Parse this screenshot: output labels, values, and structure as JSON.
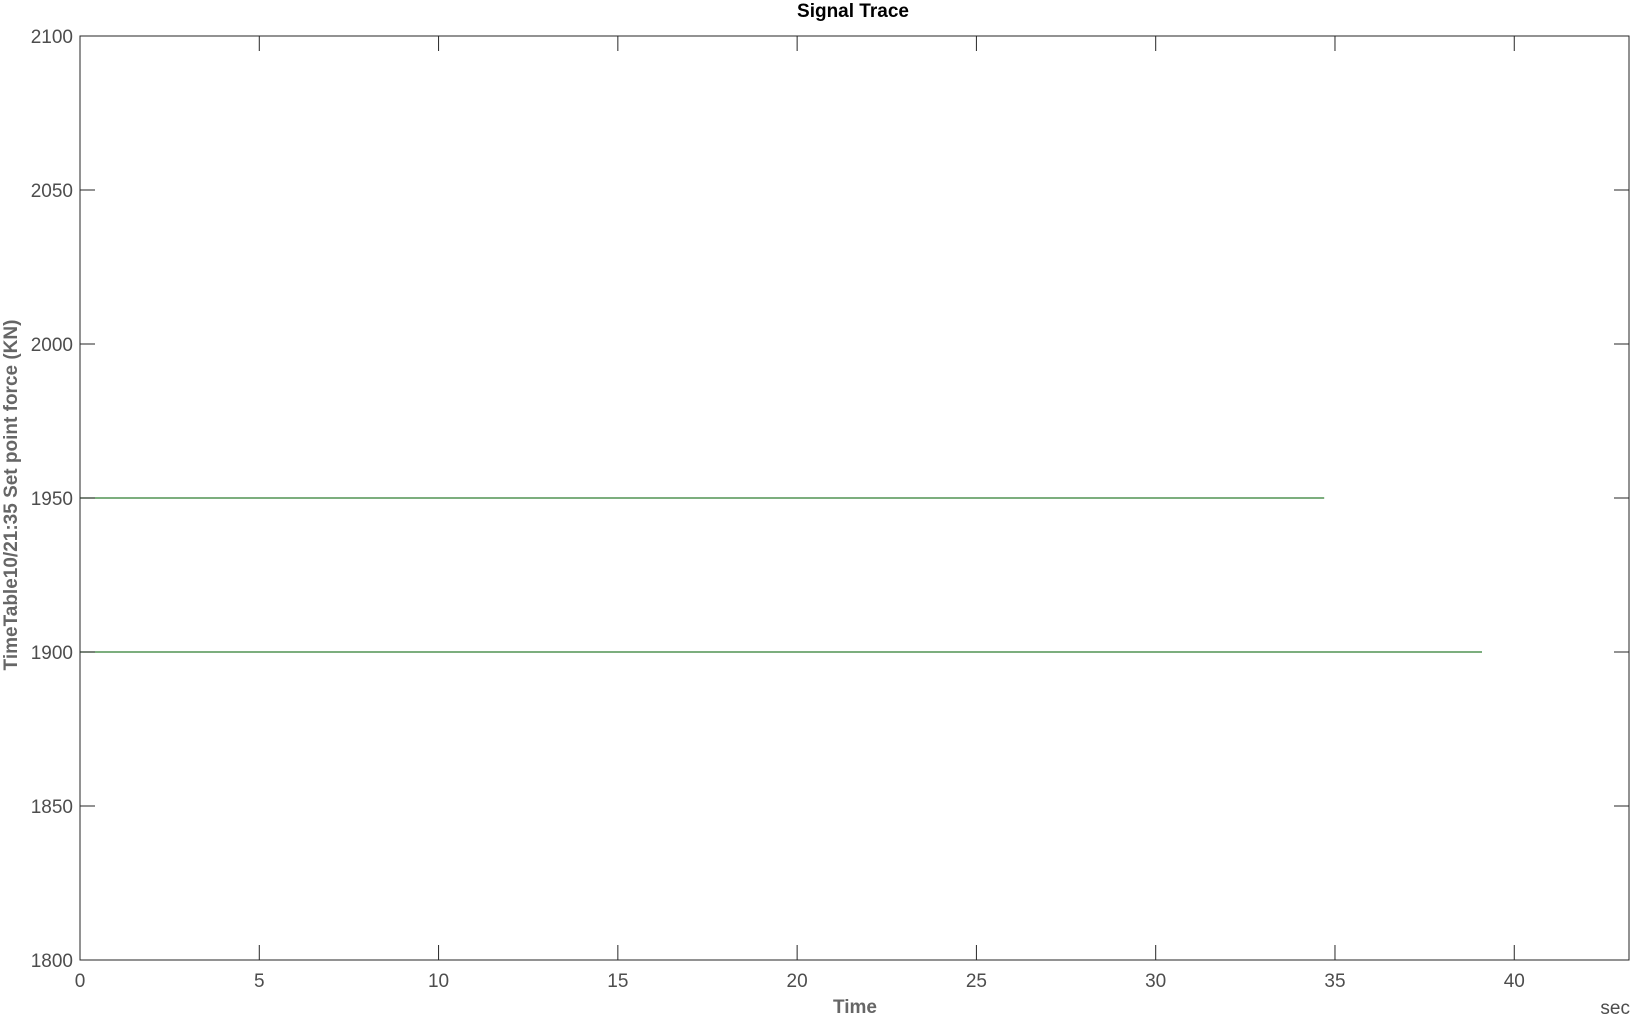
{
  "chart_data": {
    "type": "line",
    "title": "Signal Trace",
    "xlabel": "Time",
    "ylabel": "TimeTable10/21:35 Set point force (KN)",
    "x_unit": "sec",
    "xlim": [
      0,
      43.2
    ],
    "ylim": [
      1800,
      2100
    ],
    "xticks": [
      0,
      5,
      10,
      15,
      20,
      25,
      30,
      35,
      40
    ],
    "yticks": [
      1800,
      1850,
      1900,
      1950,
      2000,
      2050,
      2100
    ],
    "grid": false,
    "line_color": "#2e7d32",
    "axis_color": "#262626",
    "series": [
      {
        "x": [
          0,
          34.7
        ],
        "values": [
          1950,
          1950
        ]
      },
      {
        "x": [
          0,
          39.1
        ],
        "values": [
          1900,
          1900
        ]
      }
    ]
  }
}
